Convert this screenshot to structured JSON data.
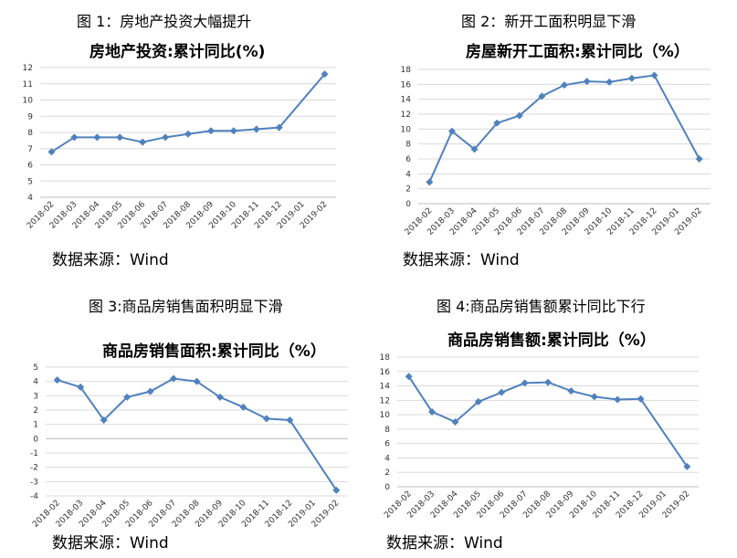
{
  "panels": [
    {
      "figure_title": "图 1：房地产投资大幅提升",
      "source": "数据来源：Wind",
      "chart_data": {
        "type": "line",
        "title": "房地产投资:累计同比(%)",
        "categories": [
          "2018-02",
          "2018-03",
          "2018-04",
          "2018-05",
          "2018-06",
          "2018-07",
          "2018-08",
          "2018-09",
          "2018-10",
          "2018-11",
          "2018-12",
          "2019-01",
          "2019-02"
        ],
        "series": [
          {
            "values": [
              6.8,
              7.7,
              7.7,
              7.7,
              7.4,
              7.7,
              7.9,
              8.1,
              8.1,
              8.2,
              8.3,
              null,
              11.6
            ]
          }
        ],
        "ylim": [
          4,
          12
        ],
        "yticks": [
          4,
          5,
          6,
          7,
          8,
          9,
          10,
          11,
          12
        ],
        "grid": true,
        "color": "#4F81BD"
      }
    },
    {
      "figure_title": "图 2：新开工面积明显下滑",
      "source": "数据来源：Wind",
      "chart_data": {
        "type": "line",
        "title": "房屋新开工面积:累计同比（%）",
        "categories": [
          "2018-02",
          "2018-03",
          "2018-04",
          "2018-05",
          "2018-06",
          "2018-07",
          "2018-08",
          "2018-09",
          "2018-10",
          "2018-11",
          "2018-12",
          "2019-01",
          "2019-02"
        ],
        "series": [
          {
            "values": [
              2.9,
              9.7,
              7.3,
              10.8,
              11.8,
              14.4,
              15.9,
              16.4,
              16.3,
              16.8,
              17.2,
              null,
              6.0
            ]
          }
        ],
        "ylim": [
          0,
          18
        ],
        "yticks": [
          0,
          2,
          4,
          6,
          8,
          10,
          12,
          14,
          16,
          18
        ],
        "grid": true,
        "color": "#4F81BD"
      }
    },
    {
      "figure_title": "图 3:商品房销售面积明显下滑",
      "source": "数据来源：Wind",
      "chart_data": {
        "type": "line",
        "title": "商品房销售面积:累计同比（%）",
        "categories": [
          "2018-02",
          "2018-03",
          "2018-04",
          "2018-05",
          "2018-06",
          "2018-07",
          "2018-08",
          "2018-09",
          "2018-10",
          "2018-11",
          "2018-12",
          "2019-01",
          "2019-02"
        ],
        "series": [
          {
            "values": [
              4.1,
              3.6,
              1.3,
              2.9,
              3.3,
              4.2,
              4.0,
              2.9,
              2.2,
              1.4,
              1.3,
              null,
              -3.6
            ]
          }
        ],
        "ylim": [
          -4,
          5
        ],
        "yticks": [
          -4,
          -3,
          -2,
          -1,
          0,
          1,
          2,
          3,
          4,
          5
        ],
        "grid": true,
        "color": "#4F81BD"
      }
    },
    {
      "figure_title": "图 4:商品房销售额累计同比下行",
      "source": "数据来源：Wind",
      "chart_data": {
        "type": "line",
        "title": "商品房销售额:累计同比（%）",
        "categories": [
          "2018-02",
          "2018-03",
          "2018-04",
          "2018-05",
          "2018-06",
          "2018-07",
          "2018-08",
          "2018-09",
          "2018-10",
          "2018-11",
          "2018-12",
          "2019-01",
          "2019-02"
        ],
        "series": [
          {
            "values": [
              15.3,
              10.4,
              9.0,
              11.8,
              13.1,
              14.4,
              14.5,
              13.3,
              12.5,
              12.1,
              12.2,
              null,
              2.8
            ]
          }
        ],
        "ylim": [
          0,
          18
        ],
        "yticks": [
          0,
          2,
          4,
          6,
          8,
          10,
          12,
          14,
          16,
          18
        ],
        "grid": true,
        "color": "#4F81BD"
      }
    }
  ]
}
